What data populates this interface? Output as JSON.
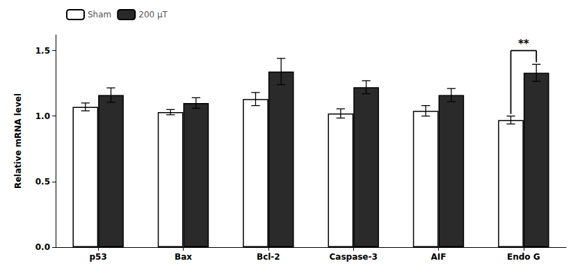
{
  "chart_data": {
    "type": "bar",
    "categories": [
      "p53",
      "Bax",
      "Bcl-2",
      "Caspase-3",
      "AIF",
      "Endo G"
    ],
    "series": [
      {
        "name": "Sham",
        "color": "white",
        "values": [
          1.07,
          1.03,
          1.13,
          1.02,
          1.04,
          0.97
        ],
        "errors": [
          0.03,
          0.02,
          0.05,
          0.035,
          0.04,
          0.03
        ]
      },
      {
        "name": "200 μT",
        "color": "#2a2a2a",
        "values": [
          1.16,
          1.1,
          1.34,
          1.22,
          1.16,
          1.33
        ],
        "errors": [
          0.055,
          0.04,
          0.1,
          0.05,
          0.05,
          0.065
        ]
      }
    ],
    "ylabel": "Relative mRNA level",
    "ylim": [
      0.0,
      1.62
    ],
    "yticks": [
      {
        "value": 0.0,
        "label": "0.0"
      },
      {
        "value": 0.5,
        "label": "0.5"
      },
      {
        "value": 1.0,
        "label": "1.0"
      },
      {
        "value": 1.5,
        "label": "1.5"
      }
    ],
    "legend": "upper left",
    "grid": false,
    "annotations": [
      {
        "text": "**",
        "category": "Endo G",
        "y": 1.5
      }
    ]
  }
}
